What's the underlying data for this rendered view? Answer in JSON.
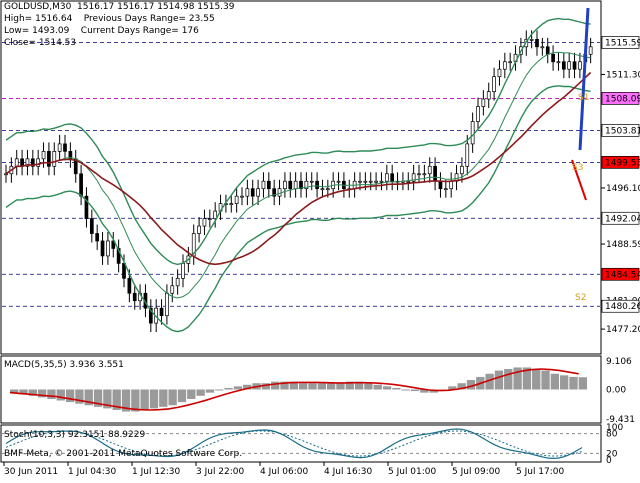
{
  "header": {
    "symbol": "GOLDUSD,M30",
    "ohlc": "1516.17 1516.17 1514.98 1515.39",
    "high": "High= 1516.64",
    "prev_range": "Previous Days Range= 23.55",
    "low": "Low= 1493.09",
    "cur_range": "Current Days Range= 176",
    "close": "Close= 1514.53"
  },
  "copyright": "BMF-Meta, © 2001-2011 MetaQuotes Software Corp.",
  "chart_data": [
    {
      "type": "candlestick",
      "panel": "price",
      "ylim": [
        1474,
        1521
      ],
      "y_ticks": [
        "1511.30",
        "1503.81",
        "1496.10",
        "1488.59",
        "1481.00",
        "1477.20"
      ],
      "x_ticks": [
        "30 Jun 2011",
        "1 Jul 04:30",
        "1 Jul 12:30",
        "3 Jul 22:00",
        "4 Jul 06:00",
        "4 Jul 16:30",
        "5 Jul 01:00",
        "5 Jul 09:00",
        "5 Jul 17:00"
      ],
      "price_tags": [
        {
          "label": "1515.59",
          "value": 1515.59,
          "color": "#ffffff"
        },
        {
          "label": "1508.09",
          "value": 1508.09,
          "color": "#ff6eff"
        },
        {
          "label": "1503.81",
          "value": 1503.81,
          "color": "#ffffff"
        },
        {
          "label": "1499.53",
          "value": 1499.53,
          "color": "#ff0000"
        },
        {
          "label": "1492.04",
          "value": 1492.04,
          "color": "#ffffff"
        },
        {
          "label": "1484.54",
          "value": 1484.54,
          "color": "#ff0000"
        },
        {
          "label": "1480.26",
          "value": 1480.26,
          "color": "#ffffff"
        }
      ],
      "pivot_labels": [
        "S1",
        "S2",
        "S3"
      ],
      "closes": [
        1498,
        1499,
        1500,
        1499,
        1500,
        1499,
        1500,
        1501,
        1499,
        1501,
        1502,
        1501,
        1500,
        1498,
        1495,
        1492,
        1490,
        1489,
        1487,
        1489,
        1488,
        1486,
        1484,
        1482,
        1481,
        1482,
        1480,
        1478,
        1480,
        1479,
        1482,
        1483,
        1484,
        1486,
        1487,
        1490,
        1491,
        1492,
        1492,
        1493,
        1494,
        1494,
        1494,
        1495,
        1495,
        1496,
        1495,
        1496,
        1497,
        1496,
        1495,
        1496,
        1497,
        1496,
        1497,
        1496,
        1497,
        1497,
        1496,
        1496,
        1496,
        1497,
        1497,
        1496,
        1496,
        1497,
        1497,
        1497,
        1497,
        1497,
        1497,
        1498,
        1497,
        1497,
        1497,
        1497,
        1498,
        1498,
        1498,
        1499,
        1497,
        1496,
        1496,
        1497,
        1498,
        1499,
        1502,
        1505,
        1507,
        1508,
        1509,
        1511,
        1512,
        1513,
        1513,
        1514,
        1515,
        1516,
        1516,
        1515,
        1515,
        1514,
        1513,
        1513,
        1512,
        1513,
        1512,
        1513,
        1514,
        1515
      ],
      "pivot_levels": [
        1515.59,
        1508.09,
        1503.81,
        1499.53,
        1492.04,
        1484.54,
        1480.26
      ]
    },
    {
      "type": "bar",
      "panel": "macd",
      "title": "MACD(5,35,5) 3.936 3.551",
      "y_ticks": [
        "9.106",
        "0.00",
        "-9.431"
      ],
      "ylim": [
        -10,
        10
      ],
      "values": [
        -1,
        -1.5,
        -2,
        -2.5,
        -3,
        -3.5,
        -4,
        -4.5,
        -5,
        -5.5,
        -6,
        -6.5,
        -7,
        -7,
        -6.5,
        -6,
        -5.5,
        -5,
        -4,
        -3,
        -2,
        -1,
        0,
        0.5,
        1,
        1.5,
        2,
        2,
        2.5,
        2.5,
        2.5,
        2,
        2,
        2,
        2,
        2,
        2.5,
        2.5,
        2,
        1.5,
        1,
        0.5,
        0,
        -0.5,
        -1,
        -1,
        0,
        1,
        2,
        3,
        4,
        5,
        6,
        6.5,
        7,
        7,
        6.5,
        6,
        5,
        4.5,
        4,
        3.9
      ]
    },
    {
      "type": "line",
      "panel": "stochastic",
      "title": "Stoch(10,3,3) 92.3151 88.9229",
      "y_ticks": [
        "100",
        "80",
        "20",
        "0"
      ],
      "ylim": [
        0,
        100
      ]
    }
  ]
}
